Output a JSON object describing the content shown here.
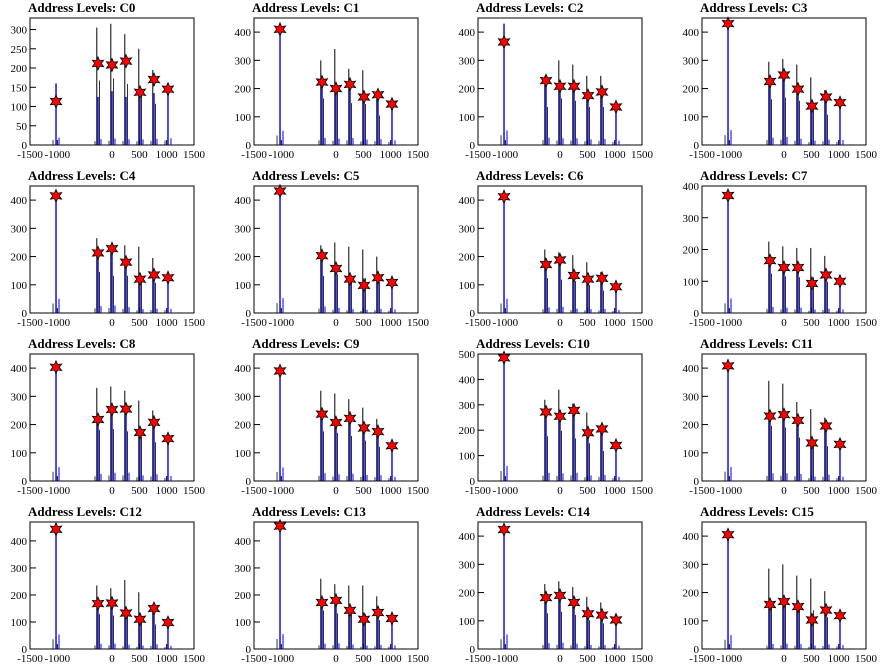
{
  "chart_data": [
    {
      "type": "bar",
      "title": "Address Levels: C0",
      "ylim": [
        0,
        330
      ],
      "yticks": [
        0,
        50,
        100,
        150,
        200,
        250,
        300
      ],
      "xlim": [
        -1500,
        1500
      ],
      "xticks": [
        -1500,
        -1000,
        0,
        500,
        1000,
        1500
      ],
      "xtick_labels": [
        "-1500",
        "-1000",
        "0",
        "500",
        "1000",
        "1500"
      ],
      "markers": {
        "x": [
          -1024,
          -256,
          0,
          256,
          512,
          768,
          1024
        ],
        "y": [
          113,
          212,
          208,
          218,
          137,
          170,
          145
        ]
      },
      "peaks_black": [
        0,
        305,
        315,
        288,
        250,
        195,
        0
      ],
      "peaks_blue": [
        160,
        125,
        140,
        125,
        120,
        135,
        145
      ]
    },
    {
      "type": "bar",
      "title": "Address Levels: C1",
      "ylim": [
        0,
        450
      ],
      "yticks": [
        0,
        100,
        200,
        300,
        400
      ],
      "xlim": [
        -1500,
        1500
      ],
      "xticks": [
        -1500,
        -1000,
        0,
        500,
        1000,
        1500
      ],
      "xtick_labels": [
        "-1500",
        "-1000",
        "0",
        "500",
        "1000",
        "1500"
      ],
      "markers": {
        "x": [
          -1024,
          -256,
          0,
          256,
          512,
          768,
          1024
        ],
        "y": [
          410,
          223,
          200,
          215,
          170,
          178,
          145
        ]
      },
      "peaks_black": [
        0,
        300,
        340,
        270,
        265,
        190,
        0
      ],
      "peaks_blue": [
        420,
        210,
        190,
        205,
        160,
        170,
        140
      ]
    },
    {
      "type": "bar",
      "title": "Address Levels: C2",
      "ylim": [
        0,
        450
      ],
      "yticks": [
        0,
        100,
        200,
        300,
        400
      ],
      "xlim": [
        -1500,
        1500
      ],
      "xticks": [
        -1500,
        -1000,
        0,
        500,
        1000,
        1500
      ],
      "xtick_labels": [
        "-1500",
        "-1000",
        "0",
        "500",
        "1000",
        "1500"
      ],
      "markers": {
        "x": [
          -1024,
          -256,
          0,
          256,
          512,
          768,
          1024
        ],
        "y": [
          365,
          228,
          208,
          208,
          175,
          188,
          135
        ]
      },
      "peaks_black": [
        0,
        245,
        300,
        285,
        245,
        245,
        0
      ],
      "peaks_blue": [
        430,
        215,
        200,
        200,
        165,
        180,
        130
      ]
    },
    {
      "type": "bar",
      "title": "Address Levels: C3",
      "ylim": [
        0,
        450
      ],
      "yticks": [
        0,
        100,
        200,
        300,
        400
      ],
      "xlim": [
        -1500,
        1500
      ],
      "xticks": [
        -1500,
        -1000,
        0,
        500,
        1000,
        1500
      ],
      "xtick_labels": [
        "-1500",
        "-1000",
        "0",
        "500",
        "1000",
        "1500"
      ],
      "markers": {
        "x": [
          -1024,
          -256,
          0,
          256,
          512,
          768,
          1024
        ],
        "y": [
          430,
          225,
          248,
          198,
          138,
          170,
          150
        ]
      },
      "peaks_black": [
        0,
        295,
        305,
        285,
        240,
        195,
        0
      ],
      "peaks_blue": [
        440,
        215,
        240,
        190,
        130,
        160,
        145
      ]
    },
    {
      "type": "bar",
      "title": "Address Levels: C4",
      "ylim": [
        0,
        450
      ],
      "yticks": [
        0,
        100,
        200,
        300,
        400
      ],
      "xlim": [
        -1500,
        1500
      ],
      "xticks": [
        -1500,
        -1000,
        0,
        500,
        1000,
        1500
      ],
      "xtick_labels": [
        "-1500",
        "-1000",
        "0",
        "500",
        "1000",
        "1500"
      ],
      "markers": {
        "x": [
          -1024,
          -256,
          0,
          256,
          512,
          768,
          1024
        ],
        "y": [
          415,
          213,
          228,
          180,
          120,
          135,
          125
        ]
      },
      "peaks_black": [
        0,
        265,
        240,
        240,
        235,
        195,
        0
      ],
      "peaks_blue": [
        420,
        205,
        220,
        175,
        115,
        130,
        120
      ]
    },
    {
      "type": "bar",
      "title": "Address Levels: C5",
      "ylim": [
        0,
        450
      ],
      "yticks": [
        0,
        100,
        200,
        300,
        400
      ],
      "xlim": [
        -1500,
        1500
      ],
      "xticks": [
        -1500,
        -1000,
        0,
        500,
        1000,
        1500
      ],
      "xtick_labels": [
        "-1500",
        "-1000",
        "0",
        "500",
        "1000",
        "1500"
      ],
      "markers": {
        "x": [
          -1024,
          -256,
          0,
          256,
          512,
          768,
          1024
        ],
        "y": [
          432,
          203,
          158,
          120,
          98,
          125,
          108
        ]
      },
      "peaks_black": [
        0,
        240,
        250,
        235,
        225,
        200,
        0
      ],
      "peaks_blue": [
        440,
        195,
        150,
        115,
        95,
        120,
        105
      ]
    },
    {
      "type": "bar",
      "title": "Address Levels: C6",
      "ylim": [
        0,
        450
      ],
      "yticks": [
        0,
        100,
        200,
        300,
        400
      ],
      "xlim": [
        -1500,
        1500
      ],
      "xticks": [
        -1500,
        -1000,
        0,
        500,
        1000,
        1500
      ],
      "xtick_labels": [
        "-1500",
        "-1000",
        "0",
        "500",
        "1000",
        "1500"
      ],
      "markers": {
        "x": [
          -1024,
          -256,
          0,
          256,
          512,
          768,
          1024
        ],
        "y": [
          412,
          172,
          188,
          133,
          120,
          123,
          93
        ]
      },
      "peaks_black": [
        0,
        225,
        215,
        205,
        180,
        145,
        0
      ],
      "peaks_blue": [
        420,
        165,
        180,
        128,
        115,
        118,
        90
      ]
    },
    {
      "type": "bar",
      "title": "Address Levels: C7",
      "ylim": [
        0,
        400
      ],
      "yticks": [
        0,
        100,
        200,
        300,
        400
      ],
      "xlim": [
        -1500,
        1500
      ],
      "xticks": [
        -1500,
        -1000,
        0,
        500,
        1000,
        1500
      ],
      "xtick_labels": [
        "-1500",
        "-1000",
        "0",
        "500",
        "1000",
        "1500"
      ],
      "markers": {
        "x": [
          -1024,
          -256,
          0,
          256,
          512,
          768,
          1024
        ],
        "y": [
          370,
          165,
          143,
          143,
          93,
          120,
          100
        ]
      },
      "peaks_black": [
        0,
        225,
        210,
        205,
        205,
        180,
        0
      ],
      "peaks_blue": [
        380,
        160,
        140,
        140,
        90,
        115,
        95
      ]
    },
    {
      "type": "bar",
      "title": "Address Levels: C8",
      "ylim": [
        0,
        450
      ],
      "yticks": [
        0,
        100,
        200,
        300,
        400
      ],
      "xlim": [
        -1500,
        1500
      ],
      "xticks": [
        -1500,
        -1000,
        0,
        500,
        1000,
        1500
      ],
      "xtick_labels": [
        "-1500",
        "-1000",
        "0",
        "500",
        "1000",
        "1500"
      ],
      "markers": {
        "x": [
          -1024,
          -256,
          0,
          256,
          512,
          768,
          1024
        ],
        "y": [
          403,
          218,
          253,
          255,
          172,
          208,
          150
        ]
      },
      "peaks_black": [
        0,
        330,
        335,
        320,
        285,
        250,
        0
      ],
      "peaks_blue": [
        410,
        210,
        245,
        245,
        165,
        200,
        145
      ]
    },
    {
      "type": "bar",
      "title": "Address Levels: C9",
      "ylim": [
        0,
        450
      ],
      "yticks": [
        0,
        100,
        200,
        300,
        400
      ],
      "xlim": [
        -1500,
        1500
      ],
      "xticks": [
        -1500,
        -1000,
        0,
        500,
        1000,
        1500
      ],
      "xtick_labels": [
        "-1500",
        "-1000",
        "0",
        "500",
        "1000",
        "1500"
      ],
      "markers": {
        "x": [
          -1024,
          -256,
          0,
          256,
          512,
          768,
          1024
        ],
        "y": [
          390,
          237,
          207,
          222,
          188,
          175,
          125
        ]
      },
      "peaks_black": [
        0,
        320,
        310,
        290,
        260,
        220,
        0
      ],
      "peaks_blue": [
        400,
        230,
        200,
        215,
        180,
        170,
        120
      ]
    },
    {
      "type": "bar",
      "title": "Address Levels: C10",
      "ylim": [
        0,
        500
      ],
      "yticks": [
        0,
        100,
        200,
        300,
        400,
        500
      ],
      "xlim": [
        -1500,
        1500
      ],
      "xticks": [
        -1500,
        -1000,
        0,
        500,
        1000,
        1500
      ],
      "xtick_labels": [
        "-1500",
        "-1000",
        "0",
        "500",
        "1000",
        "1500"
      ],
      "markers": {
        "x": [
          -1024,
          -256,
          0,
          256,
          512,
          768,
          1024
        ],
        "y": [
          485,
          272,
          255,
          278,
          190,
          205,
          140
        ]
      },
      "peaks_black": [
        0,
        320,
        360,
        305,
        270,
        215,
        0
      ],
      "peaks_blue": [
        495,
        265,
        250,
        270,
        185,
        200,
        135
      ]
    },
    {
      "type": "bar",
      "title": "Address Levels: C11",
      "ylim": [
        0,
        450
      ],
      "yticks": [
        0,
        100,
        200,
        300,
        400
      ],
      "xlim": [
        -1500,
        1500
      ],
      "xticks": [
        -1500,
        -1000,
        0,
        500,
        1000,
        1500
      ],
      "xtick_labels": [
        "-1500",
        "-1000",
        "0",
        "500",
        "1000",
        "1500"
      ],
      "markers": {
        "x": [
          -1024,
          -256,
          0,
          256,
          512,
          768,
          1024
        ],
        "y": [
          408,
          230,
          235,
          215,
          135,
          195,
          130
        ]
      },
      "peaks_black": [
        0,
        355,
        345,
        280,
        255,
        225,
        0
      ],
      "peaks_blue": [
        415,
        225,
        230,
        210,
        130,
        190,
        125
      ]
    },
    {
      "type": "bar",
      "title": "Address Levels: C12",
      "ylim": [
        0,
        470
      ],
      "yticks": [
        0,
        100,
        200,
        300,
        400
      ],
      "xlim": [
        -1500,
        1500
      ],
      "xticks": [
        -1500,
        -1000,
        0,
        500,
        1000,
        1500
      ],
      "xtick_labels": [
        "-1500",
        "-1000",
        "0",
        "500",
        "1000",
        "1500"
      ],
      "markers": {
        "x": [
          -1024,
          -256,
          0,
          256,
          512,
          768,
          1024
        ],
        "y": [
          443,
          168,
          170,
          133,
          110,
          150,
          98
        ]
      },
      "peaks_black": [
        0,
        235,
        225,
        255,
        210,
        165,
        0
      ],
      "peaks_blue": [
        450,
        160,
        165,
        128,
        105,
        145,
        95
      ]
    },
    {
      "type": "bar",
      "title": "Address Levels: C13",
      "ylim": [
        0,
        470
      ],
      "yticks": [
        0,
        100,
        200,
        300,
        400
      ],
      "xlim": [
        -1500,
        1500
      ],
      "xticks": [
        -1500,
        -1000,
        0,
        500,
        1000,
        1500
      ],
      "xtick_labels": [
        "-1500",
        "-1000",
        "0",
        "500",
        "1000",
        "1500"
      ],
      "markers": {
        "x": [
          -1024,
          -256,
          0,
          256,
          512,
          768,
          1024
        ],
        "y": [
          455,
          172,
          180,
          143,
          110,
          135,
          113
        ]
      },
      "peaks_black": [
        0,
        260,
        240,
        235,
        235,
        195,
        0
      ],
      "peaks_blue": [
        460,
        165,
        175,
        138,
        105,
        130,
        110
      ]
    },
    {
      "type": "bar",
      "title": "Address Levels: C14",
      "ylim": [
        0,
        450
      ],
      "yticks": [
        0,
        100,
        200,
        300,
        400
      ],
      "xlim": [
        -1500,
        1500
      ],
      "xticks": [
        -1500,
        -1000,
        0,
        500,
        1000,
        1500
      ],
      "xtick_labels": [
        "-1500",
        "-1000",
        "0",
        "500",
        "1000",
        "1500"
      ],
      "markers": {
        "x": [
          -1024,
          -256,
          0,
          256,
          512,
          768,
          1024
        ],
        "y": [
          423,
          182,
          190,
          165,
          125,
          120,
          103
        ]
      },
      "peaks_black": [
        0,
        230,
        240,
        220,
        185,
        165,
        0
      ],
      "peaks_blue": [
        430,
        175,
        185,
        160,
        120,
        115,
        100
      ]
    },
    {
      "type": "bar",
      "title": "Address Levels: C15",
      "ylim": [
        0,
        450
      ],
      "yticks": [
        0,
        100,
        200,
        300,
        400
      ],
      "xlim": [
        -1500,
        1500
      ],
      "xticks": [
        -1500,
        -1000,
        0,
        500,
        1000,
        1500
      ],
      "xtick_labels": [
        "-1500",
        "-1000",
        "0",
        "500",
        "1000",
        "1500"
      ],
      "markers": {
        "x": [
          -1024,
          -256,
          0,
          256,
          512,
          768,
          1024
        ],
        "y": [
          405,
          158,
          168,
          150,
          103,
          138,
          118
        ]
      },
      "peaks_black": [
        0,
        285,
        300,
        260,
        250,
        205,
        0
      ],
      "peaks_blue": [
        410,
        150,
        160,
        145,
        100,
        135,
        115
      ]
    }
  ],
  "colors": {
    "marker_fill": "#ff0000",
    "marker_stroke": "#000000",
    "line_blue": "#0000ee",
    "line_black": "#000000",
    "axis": "#000000"
  }
}
